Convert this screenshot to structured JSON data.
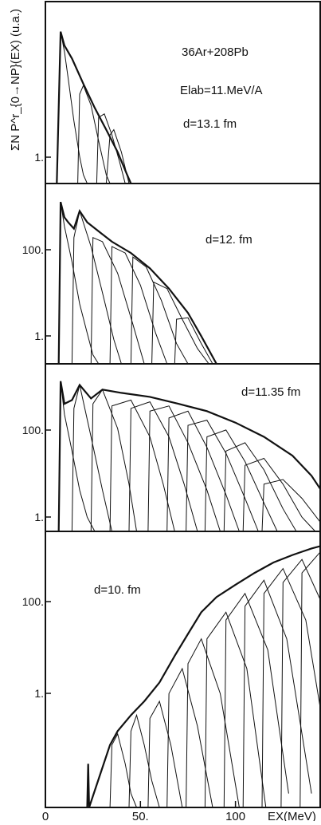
{
  "chart_data": {
    "type": "line",
    "ylabel": "ΣN P^r_{0→NP}(EX) (u.a.)",
    "xlabel": "EX(MeV)",
    "x_ticks": [
      "0",
      "50.",
      "100"
    ],
    "xlim": [
      0,
      145
    ],
    "yscale": "log",
    "colors": {
      "ink": "#111111",
      "background": "#ffffff"
    },
    "panels": [
      {
        "annotations": [
          "36Ar+208Pb",
          "Elab=11.MeV/A",
          "d=13.1 fm"
        ],
        "y_ticks": [
          "1."
        ],
        "ylim": [
          0.2,
          20
        ],
        "envelope": [
          [
            6,
            0.2
          ],
          [
            8,
            10
          ],
          [
            10,
            7
          ],
          [
            14,
            5
          ],
          [
            20,
            2.6
          ],
          [
            26,
            1.4
          ],
          [
            32,
            0.8
          ],
          [
            38,
            0.45
          ],
          [
            43,
            0.25
          ],
          [
            45,
            0.2
          ]
        ],
        "components": [
          {
            "x": [
              6,
              8,
              10,
              12,
              15,
              18,
              20,
              22
            ],
            "y": [
              0.2,
              10,
              6,
              3,
              1,
              0.4,
              0.25,
              0.2
            ]
          },
          {
            "x": [
              17,
              18,
              20,
              24,
              28,
              32,
              34
            ],
            "y": [
              0.2,
              2,
              2.5,
              1.5,
              0.6,
              0.25,
              0.2
            ]
          },
          {
            "x": [
              27,
              28,
              31,
              35,
              39,
              42
            ],
            "y": [
              0.2,
              1.1,
              1.2,
              0.7,
              0.35,
              0.2
            ]
          },
          {
            "x": [
              32,
              34,
              36,
              40,
              44
            ],
            "y": [
              0.2,
              0.7,
              0.8,
              0.45,
              0.2
            ]
          }
        ]
      },
      {
        "annotations": [
          "d=12. fm"
        ],
        "y_ticks": [
          "100.",
          "1."
        ],
        "ylim": [
          0.2,
          600
        ],
        "envelope": [
          [
            7,
            0.2
          ],
          [
            8,
            300
          ],
          [
            10,
            150
          ],
          [
            12,
            120
          ],
          [
            15,
            90
          ],
          [
            18,
            200
          ],
          [
            22,
            120
          ],
          [
            28,
            80
          ],
          [
            35,
            50
          ],
          [
            45,
            30
          ],
          [
            55,
            15
          ],
          [
            65,
            6
          ],
          [
            75,
            2
          ],
          [
            82,
            0.7
          ],
          [
            90,
            0.2
          ]
        ],
        "components": [
          {
            "x": [
              7,
              8,
              10,
              14,
              18,
              22,
              25,
              28
            ],
            "y": [
              0.2,
              300,
              100,
              20,
              3,
              0.8,
              0.3,
              0.2
            ]
          },
          {
            "x": [
              14,
              15,
              18,
              24,
              30,
              36,
              40
            ],
            "y": [
              0.2,
              60,
              200,
              40,
              5,
              0.6,
              0.2
            ]
          },
          {
            "x": [
              24,
              25,
              30,
              38,
              46,
              52
            ],
            "y": [
              0.2,
              60,
              50,
              12,
              1.2,
              0.2
            ]
          },
          {
            "x": [
              34,
              35,
              42,
              50,
              58,
              64
            ],
            "y": [
              0.2,
              40,
              30,
              7,
              0.8,
              0.2
            ]
          },
          {
            "x": [
              45,
              46,
              53,
              61,
              69,
              75
            ],
            "y": [
              0.2,
              25,
              16,
              3.5,
              0.5,
              0.2
            ]
          },
          {
            "x": [
              56,
              57,
              64,
              72,
              80,
              86
            ],
            "y": [
              0.2,
              8,
              6,
              1.5,
              0.4,
              0.2
            ]
          },
          {
            "x": [
              68,
              69,
              75,
              82,
              88
            ],
            "y": [
              0.2,
              1.5,
              1.6,
              0.5,
              0.2
            ]
          }
        ]
      },
      {
        "annotations": [
          "d=11.35 fm"
        ],
        "y_ticks": [
          "100.",
          "1."
        ],
        "ylim": [
          0.2,
          600
        ],
        "envelope": [
          [
            7,
            0.2
          ],
          [
            8,
            300
          ],
          [
            10,
            100
          ],
          [
            14,
            120
          ],
          [
            18,
            250
          ],
          [
            24,
            130
          ],
          [
            30,
            200
          ],
          [
            40,
            170
          ],
          [
            55,
            140
          ],
          [
            70,
            100
          ],
          [
            85,
            70
          ],
          [
            100,
            40
          ],
          [
            115,
            20
          ],
          [
            130,
            8
          ],
          [
            140,
            3
          ],
          [
            145,
            1.5
          ]
        ],
        "components": [
          {
            "x": [
              7,
              8,
              10,
              14,
              18,
              22,
              26
            ],
            "y": [
              0.2,
              300,
              60,
              10,
              1.5,
              0.4,
              0.2
            ]
          },
          {
            "x": [
              14,
              15,
              18,
              24,
              30,
              35
            ],
            "y": [
              0.2,
              80,
              250,
              20,
              1.5,
              0.2
            ]
          },
          {
            "x": [
              24,
              25,
              30,
              38,
              44,
              48
            ],
            "y": [
              0.2,
              100,
              200,
              30,
              2,
              0.2
            ]
          },
          {
            "x": [
              34,
              35,
              45,
              55,
              62,
              68
            ],
            "y": [
              0.2,
              90,
              120,
              20,
              2,
              0.2
            ]
          },
          {
            "x": [
              44,
              45,
              55,
              65,
              73,
              80
            ],
            "y": [
              0.2,
              80,
              110,
              20,
              2,
              0.2
            ]
          },
          {
            "x": [
              54,
              55,
              65,
              75,
              85,
              92
            ],
            "y": [
              0.2,
              70,
              90,
              15,
              1.5,
              0.2
            ]
          },
          {
            "x": [
              64,
              65,
              75,
              85,
              95,
              102
            ],
            "y": [
              0.2,
              50,
              70,
              12,
              1.2,
              0.2
            ]
          },
          {
            "x": [
              74,
              75,
              85,
              95,
              105,
              112
            ],
            "y": [
              0.2,
              35,
              45,
              9,
              1,
              0.2
            ]
          },
          {
            "x": [
              84,
              85,
              95,
              105,
              115,
              122
            ],
            "y": [
              0.2,
              20,
              28,
              6,
              0.8,
              0.2
            ]
          },
          {
            "x": [
              94,
              95,
              105,
              115,
              125,
              132
            ],
            "y": [
              0.2,
              10,
              15,
              4,
              0.6,
              0.2
            ]
          },
          {
            "x": [
              104,
              105,
              115,
              125,
              135,
              142
            ],
            "y": [
              0.2,
              5,
              7,
              2,
              0.4,
              0.2
            ]
          },
          {
            "x": [
              114,
              115,
              125,
              135,
              145
            ],
            "y": [
              0.2,
              2,
              2.5,
              1,
              0.3
            ]
          }
        ]
      },
      {
        "annotations": [
          "d=10. fm"
        ],
        "y_ticks": [
          "100.",
          "1."
        ],
        "ylim": [
          0.03,
          700
        ],
        "envelope": [
          [
            22,
            0.03
          ],
          [
            22.5,
            0.15
          ],
          [
            23,
            0.03
          ],
          [
            34,
            0.3
          ],
          [
            38,
            0.5
          ],
          [
            45,
            0.9
          ],
          [
            52,
            1.5
          ],
          [
            60,
            3
          ],
          [
            68,
            8
          ],
          [
            75,
            18
          ],
          [
            82,
            40
          ],
          [
            90,
            70
          ],
          [
            100,
            110
          ],
          [
            110,
            170
          ],
          [
            120,
            250
          ],
          [
            130,
            330
          ],
          [
            140,
            420
          ],
          [
            145,
            460
          ]
        ],
        "components": [
          {
            "x": [
              34,
              35,
              38,
              42,
              45,
              48
            ],
            "y": [
              0.03,
              0.3,
              0.45,
              0.15,
              0.05,
              0.03
            ]
          },
          {
            "x": [
              44,
              45,
              48,
              52,
              56,
              60
            ],
            "y": [
              0.03,
              0.5,
              0.9,
              0.3,
              0.08,
              0.03
            ]
          },
          {
            "x": [
              54,
              55,
              60,
              66,
              72
            ],
            "y": [
              0.03,
              0.8,
              1.5,
              0.3,
              0.03
            ]
          },
          {
            "x": [
              64,
              65,
              72,
              80,
              88
            ],
            "y": [
              0.03,
              2,
              5,
              0.6,
              0.03
            ]
          },
          {
            "x": [
              74,
              75,
              82,
              92,
              102
            ],
            "y": [
              0.03,
              6,
              15,
              2,
              0.03
            ]
          },
          {
            "x": [
              84,
              85,
              95,
              106,
              116
            ],
            "y": [
              0.03,
              15,
              40,
              5,
              0.03
            ]
          },
          {
            "x": [
              94,
              95,
              105,
              117,
              128
            ],
            "y": [
              0.03,
              30,
              80,
              10,
              0.05
            ]
          },
          {
            "x": [
              104,
              105,
              115,
              127,
              140
            ],
            "y": [
              0.03,
              50,
              130,
              15,
              0.05
            ]
          },
          {
            "x": [
              114,
              115,
              125,
              137,
              145
            ],
            "y": [
              0.03,
              80,
              200,
              30,
              1
            ]
          },
          {
            "x": [
              124,
              125,
              135,
              145
            ],
            "y": [
              0.03,
              120,
              280,
              60
            ]
          },
          {
            "x": [
              134,
              135,
              145
            ],
            "y": [
              0.03,
              170,
              380
            ]
          }
        ]
      }
    ]
  }
}
